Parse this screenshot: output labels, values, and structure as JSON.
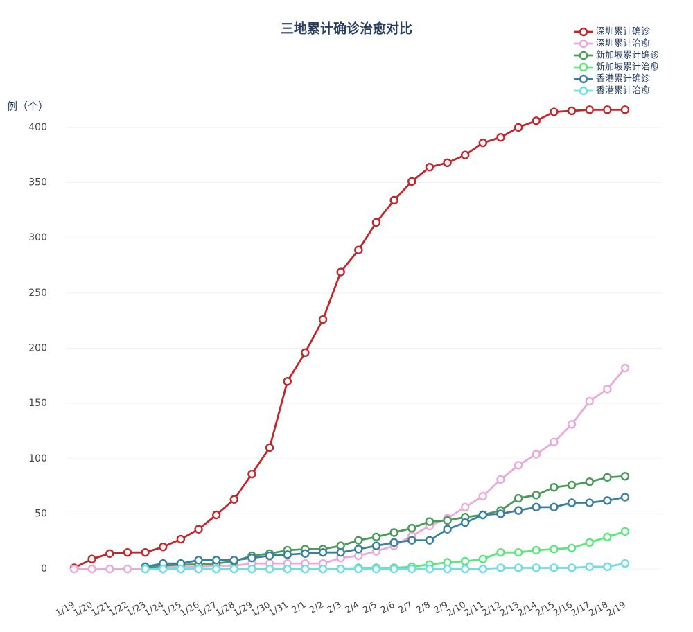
{
  "chart_data": {
    "type": "line",
    "title": "三地累计确诊治愈对比",
    "y_label": "例（个）",
    "categories": [
      "1/19",
      "1/20",
      "1/21",
      "1/22",
      "1/23",
      "1/24",
      "1/25",
      "1/26",
      "1/27",
      "1/28",
      "1/29",
      "1/30",
      "1/31",
      "2/1",
      "2/2",
      "2/3",
      "2/4",
      "2/5",
      "2/6",
      "2/7",
      "2/8",
      "2/9",
      "2/10",
      "2/11",
      "2/12",
      "2/13",
      "2/14",
      "2/15",
      "2/16",
      "2/17",
      "2/18",
      "2/19"
    ],
    "ylim": [
      -10,
      425
    ],
    "yticks": [
      0,
      50,
      100,
      150,
      200,
      250,
      300,
      350,
      400
    ],
    "grid": true,
    "legend": "top-right",
    "series": [
      {
        "name": "深圳累计确诊",
        "color": "#c0272d",
        "values": [
          1,
          9,
          14,
          15,
          15,
          20,
          27,
          36,
          49,
          63,
          86,
          110,
          170,
          196,
          226,
          269,
          289,
          314,
          334,
          351,
          364,
          368,
          375,
          386,
          391,
          400,
          406,
          414,
          415,
          416,
          416,
          416
        ]
      },
      {
        "name": "深圳累计治愈",
        "color": "#e9a9d9",
        "values": [
          0,
          0,
          0,
          0,
          0,
          2,
          2,
          2,
          3,
          3,
          5,
          5,
          5,
          5,
          5,
          10,
          12,
          16,
          21,
          30,
          39,
          46,
          56,
          66,
          81,
          94,
          104,
          115,
          131,
          152,
          163,
          182
        ]
      },
      {
        "name": "新加坡累计确诊",
        "color": "#4a9a5a",
        "values": [
          null,
          null,
          null,
          null,
          1,
          3,
          4,
          4,
          5,
          7,
          12,
          14,
          17,
          18,
          18,
          21,
          26,
          29,
          33,
          37,
          43,
          44,
          47,
          49,
          53,
          64,
          67,
          74,
          76,
          79,
          83,
          84
        ]
      },
      {
        "name": "新加坡累计治愈",
        "color": "#5ce67c",
        "values": [
          null,
          null,
          null,
          null,
          0,
          0,
          0,
          0,
          0,
          0,
          0,
          0,
          0,
          0,
          0,
          0,
          1,
          1,
          1,
          2,
          4,
          6,
          7,
          9,
          15,
          15,
          17,
          18,
          19,
          24,
          29,
          34
        ]
      },
      {
        "name": "香港累计确诊",
        "color": "#3a7fa2",
        "values": [
          null,
          null,
          null,
          null,
          2,
          5,
          5,
          8,
          8,
          8,
          10,
          12,
          13,
          14,
          15,
          15,
          18,
          21,
          24,
          26,
          26,
          36,
          42,
          49,
          50,
          53,
          56,
          56,
          60,
          60,
          62,
          65
        ]
      },
      {
        "name": "香港累计治愈",
        "color": "#6fdde6",
        "values": [
          null,
          null,
          null,
          null,
          0,
          0,
          0,
          0,
          0,
          0,
          0,
          0,
          0,
          0,
          0,
          0,
          0,
          0,
          0,
          0,
          0,
          0,
          0,
          0,
          1,
          1,
          1,
          1,
          1,
          2,
          2,
          5
        ]
      }
    ]
  }
}
